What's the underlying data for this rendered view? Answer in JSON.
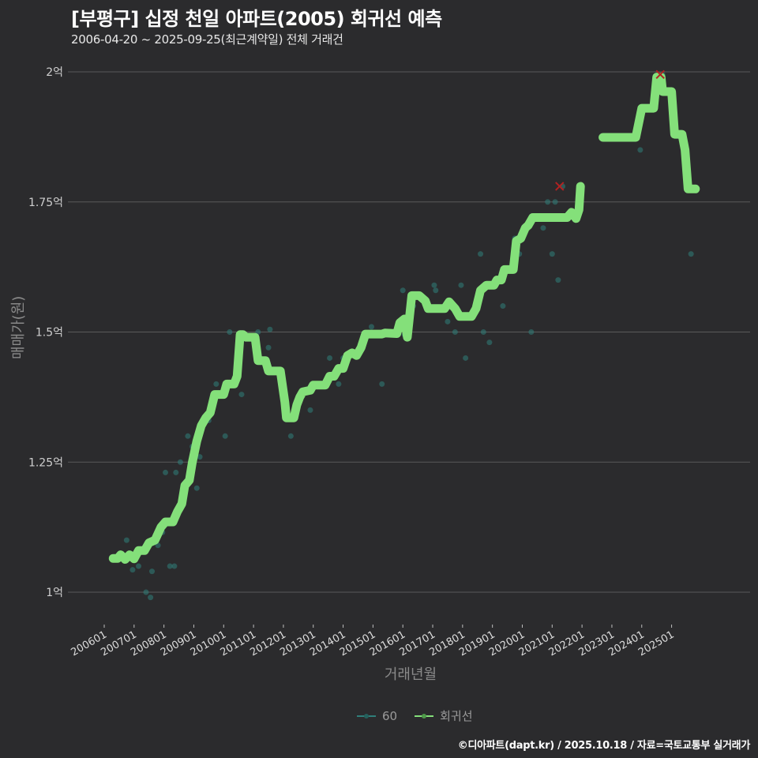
{
  "header": {
    "title": "[부평구] 십정 천일 아파트(2005) 회귀선 예측",
    "subtitle": "2006-04-20 ~ 2025-09-25(최근계약일) 전체 거래건"
  },
  "legend": {
    "items": [
      {
        "label": "60",
        "color": "#2f7f7a"
      },
      {
        "label": "회귀선",
        "color": "#84e07a"
      }
    ]
  },
  "footer": {
    "credit": "©디아파트(dapt.kr) / 2025.10.18 / 자료=국토교통부 실거래가"
  },
  "colors": {
    "background": "#2b2b2d",
    "gridline": "#5a5a5a",
    "regression": "#84e07a",
    "scatter": "#2f7f7a",
    "highlight_x": "#b22222"
  },
  "chart_data": {
    "type": "line",
    "title": "[부평구] 십정 천일 아파트(2005) 회귀선 예측",
    "subtitle": "2006-04-20 ~ 2025-09-25(최근계약일) 전체 거래건",
    "xlabel": "거래년월",
    "ylabel": "매매가(원)",
    "ylim": [
      0.96,
      2.02
    ],
    "y_unit": "억",
    "y_ticks": [
      {
        "value": 1.0,
        "label": "1억"
      },
      {
        "value": 1.25,
        "label": "1.25억"
      },
      {
        "value": 1.5,
        "label": "1.5억"
      },
      {
        "value": 1.75,
        "label": "1.75억"
      },
      {
        "value": 2.0,
        "label": "2억"
      }
    ],
    "x_ticks": [
      "200601",
      "200701",
      "200801",
      "200901",
      "201001",
      "201101",
      "201201",
      "201301",
      "201401",
      "201501",
      "201601",
      "201701",
      "201801",
      "201901",
      "202001",
      "202101",
      "202201",
      "202301",
      "202401",
      "202501"
    ],
    "grid": {
      "horizontal": true,
      "vertical": false
    },
    "legend_position": "bottom",
    "series": [
      {
        "name": "회귀선",
        "kind": "line",
        "segments": [
          [
            [
              2006.3,
              1.065
            ],
            [
              2006.45,
              1.065
            ],
            [
              2006.55,
              1.072
            ],
            [
              2006.7,
              1.063
            ],
            [
              2006.85,
              1.072
            ],
            [
              2007.0,
              1.064
            ],
            [
              2007.15,
              1.08
            ],
            [
              2007.35,
              1.08
            ],
            [
              2007.5,
              1.095
            ],
            [
              2007.7,
              1.1
            ],
            [
              2007.9,
              1.125
            ],
            [
              2008.05,
              1.135
            ],
            [
              2008.3,
              1.135
            ],
            [
              2008.45,
              1.155
            ],
            [
              2008.6,
              1.17
            ],
            [
              2008.7,
              1.205
            ],
            [
              2008.85,
              1.215
            ],
            [
              2008.95,
              1.25
            ],
            [
              2009.1,
              1.29
            ],
            [
              2009.25,
              1.32
            ],
            [
              2009.4,
              1.335
            ],
            [
              2009.55,
              1.345
            ],
            [
              2009.7,
              1.38
            ],
            [
              2010.0,
              1.38
            ],
            [
              2010.1,
              1.4
            ],
            [
              2010.35,
              1.4
            ],
            [
              2010.45,
              1.415
            ],
            [
              2010.55,
              1.495
            ],
            [
              2010.65,
              1.495
            ],
            [
              2010.75,
              1.49
            ],
            [
              2011.05,
              1.49
            ],
            [
              2011.15,
              1.445
            ],
            [
              2011.4,
              1.445
            ],
            [
              2011.5,
              1.425
            ],
            [
              2011.9,
              1.425
            ],
            [
              2012.05,
              1.365
            ],
            [
              2012.1,
              1.335
            ],
            [
              2012.35,
              1.335
            ],
            [
              2012.45,
              1.36
            ],
            [
              2012.55,
              1.375
            ],
            [
              2012.65,
              1.385
            ],
            [
              2012.9,
              1.388
            ],
            [
              2013.0,
              1.398
            ],
            [
              2013.4,
              1.398
            ],
            [
              2013.55,
              1.415
            ],
            [
              2013.7,
              1.415
            ],
            [
              2013.85,
              1.43
            ],
            [
              2014.0,
              1.43
            ],
            [
              2014.15,
              1.455
            ],
            [
              2014.3,
              1.46
            ],
            [
              2014.45,
              1.455
            ],
            [
              2014.6,
              1.47
            ],
            [
              2014.75,
              1.496
            ],
            [
              2015.3,
              1.496
            ],
            [
              2015.4,
              1.498
            ],
            [
              2015.8,
              1.497
            ],
            [
              2015.9,
              1.518
            ],
            [
              2016.05,
              1.525
            ],
            [
              2016.15,
              1.49
            ],
            [
              2016.3,
              1.57
            ],
            [
              2016.55,
              1.57
            ],
            [
              2016.75,
              1.56
            ],
            [
              2016.85,
              1.545
            ],
            [
              2017.4,
              1.545
            ],
            [
              2017.55,
              1.558
            ],
            [
              2017.75,
              1.545
            ],
            [
              2017.9,
              1.53
            ],
            [
              2018.3,
              1.53
            ],
            [
              2018.45,
              1.545
            ],
            [
              2018.6,
              1.58
            ],
            [
              2018.8,
              1.59
            ],
            [
              2019.05,
              1.59
            ],
            [
              2019.15,
              1.6
            ],
            [
              2019.3,
              1.6
            ],
            [
              2019.4,
              1.62
            ],
            [
              2019.7,
              1.62
            ],
            [
              2019.8,
              1.675
            ],
            [
              2019.95,
              1.68
            ],
            [
              2020.1,
              1.7
            ],
            [
              2020.2,
              1.705
            ],
            [
              2020.35,
              1.72
            ],
            [
              2021.5,
              1.72
            ],
            [
              2021.65,
              1.73
            ],
            [
              2021.8,
              1.718
            ],
            [
              2021.9,
              1.735
            ],
            [
              2021.95,
              1.78
            ]
          ],
          [
            [
              2022.7,
              1.874
            ],
            [
              2023.8,
              1.874
            ],
            [
              2024.0,
              1.93
            ],
            [
              2024.4,
              1.93
            ],
            [
              2024.5,
              1.99
            ],
            [
              2024.65,
              1.99
            ],
            [
              2024.7,
              1.962
            ],
            [
              2025.0,
              1.962
            ],
            [
              2025.1,
              1.88
            ],
            [
              2025.35,
              1.88
            ],
            [
              2025.45,
              1.85
            ],
            [
              2025.55,
              1.775
            ],
            [
              2025.8,
              1.775
            ]
          ]
        ]
      },
      {
        "name": "60",
        "kind": "scatter",
        "points": [
          [
            2006.75,
            1.1
          ],
          [
            2006.95,
            1.043
          ],
          [
            2007.15,
            1.05
          ],
          [
            2007.4,
            1.0
          ],
          [
            2007.55,
            0.99
          ],
          [
            2007.6,
            1.04
          ],
          [
            2007.8,
            1.09
          ],
          [
            2007.95,
            1.115
          ],
          [
            2008.05,
            1.23
          ],
          [
            2008.2,
            1.05
          ],
          [
            2008.35,
            1.05
          ],
          [
            2008.4,
            1.23
          ],
          [
            2008.55,
            1.25
          ],
          [
            2008.8,
            1.3
          ],
          [
            2008.95,
            1.28
          ],
          [
            2009.1,
            1.2
          ],
          [
            2009.2,
            1.26
          ],
          [
            2009.5,
            1.33
          ],
          [
            2009.75,
            1.4
          ],
          [
            2010.05,
            1.3
          ],
          [
            2010.2,
            1.5
          ],
          [
            2010.6,
            1.38
          ],
          [
            2011.15,
            1.5
          ],
          [
            2011.5,
            1.47
          ],
          [
            2011.55,
            1.505
          ],
          [
            2012.25,
            1.3
          ],
          [
            2012.9,
            1.35
          ],
          [
            2013.55,
            1.45
          ],
          [
            2013.85,
            1.4
          ],
          [
            2014.0,
            1.45
          ],
          [
            2014.4,
            1.46
          ],
          [
            2014.75,
            1.49
          ],
          [
            2014.95,
            1.51
          ],
          [
            2015.3,
            1.4
          ],
          [
            2015.75,
            1.5
          ],
          [
            2015.9,
            1.52
          ],
          [
            2016.0,
            1.58
          ],
          [
            2016.05,
            1.495
          ],
          [
            2016.35,
            1.55
          ],
          [
            2017.05,
            1.59
          ],
          [
            2017.1,
            1.58
          ],
          [
            2017.5,
            1.52
          ],
          [
            2017.75,
            1.5
          ],
          [
            2017.95,
            1.59
          ],
          [
            2018.1,
            1.45
          ],
          [
            2018.6,
            1.65
          ],
          [
            2018.7,
            1.5
          ],
          [
            2018.9,
            1.48
          ],
          [
            2019.35,
            1.55
          ],
          [
            2019.55,
            1.62
          ],
          [
            2019.75,
            1.68
          ],
          [
            2019.9,
            1.65
          ],
          [
            2020.3,
            1.5
          ],
          [
            2020.7,
            1.7
          ],
          [
            2020.85,
            1.75
          ],
          [
            2021.0,
            1.65
          ],
          [
            2021.1,
            1.75
          ],
          [
            2021.2,
            1.6
          ],
          [
            2021.35,
            1.78
          ],
          [
            2023.9,
            1.9
          ],
          [
            2023.95,
            1.85
          ],
          [
            2024.55,
            1.985
          ],
          [
            2024.7,
            1.995
          ],
          [
            2025.05,
            1.905
          ],
          [
            2025.65,
            1.65
          ]
        ]
      },
      {
        "name": "highlight",
        "kind": "marker-x",
        "points": [
          [
            2021.25,
            1.78
          ],
          [
            2024.62,
            1.995
          ]
        ]
      }
    ]
  }
}
